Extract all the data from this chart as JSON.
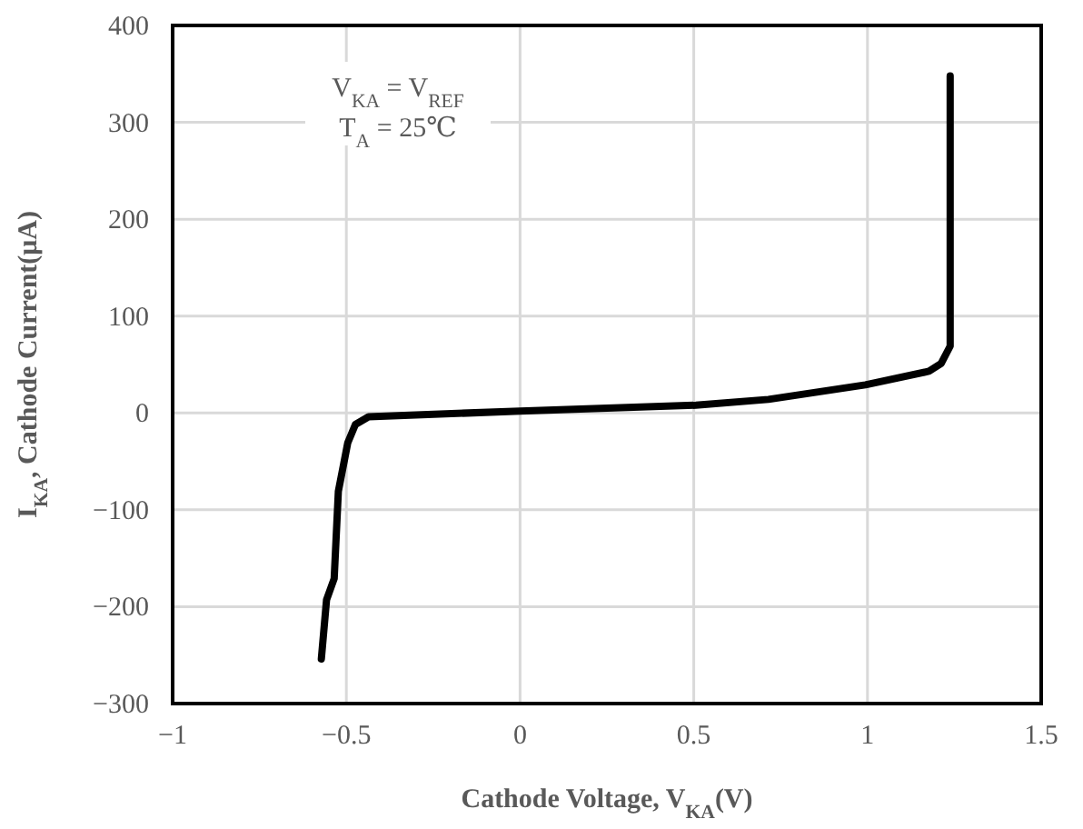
{
  "chart_data": {
    "type": "line",
    "xlabel": "Cathode Voltage, V$_{KA}$(V)",
    "ylabel": "I$_{KA}$, Cathode Current(μA)",
    "annotations": [
      "V$_{KA}$ = V$_{REF}$",
      "T$_{A}$ = 25℃"
    ],
    "xlim": [
      -1,
      1.5
    ],
    "ylim": [
      -300,
      400
    ],
    "xticks": [
      {
        "value": -1,
        "label": "−1"
      },
      {
        "value": -0.5,
        "label": "−0.5"
      },
      0,
      0.5,
      1,
      1.5
    ],
    "yticks": [
      {
        "value": -300,
        "label": "−300"
      },
      {
        "value": -200,
        "label": "−200"
      },
      {
        "value": -100,
        "label": "−100"
      },
      0,
      100,
      200,
      300,
      400
    ],
    "grid": true,
    "marker": "none",
    "line_style": "solid",
    "series": [
      {
        "color": "#000000",
        "x": [
          -0.572,
          -0.557,
          -0.535,
          -0.523,
          -0.496,
          -0.474,
          -0.436,
          0,
          0.506,
          0.715,
          0.994,
          1.177,
          1.212,
          1.238,
          1.238
        ],
        "values": [
          -254,
          -193,
          -171,
          -81,
          -31,
          -12,
          -4,
          2,
          8,
          14,
          29,
          43,
          51,
          69,
          348
        ]
      }
    ]
  }
}
